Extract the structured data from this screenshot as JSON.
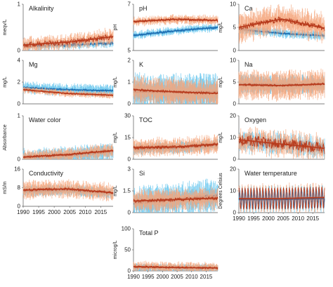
{
  "chart_data": [
    {
      "type": "line",
      "title": "Alkalinity",
      "ylabel": "meqv/L",
      "ylim": [
        0,
        1
      ],
      "yticks": [
        "0",
        "1"
      ],
      "xlim": [
        1990,
        2019
      ],
      "series": [
        {
          "color": "#1f6fb2",
          "shade": "#66c6ee",
          "trend": [
            0.1,
            0.12,
            0.16
          ],
          "noise": 0.04,
          "band": 0.05
        },
        {
          "color": "#b73a1c",
          "shade": "#f5a67c",
          "trend": [
            0.12,
            0.18,
            0.3
          ],
          "noise": 0.06,
          "band": 0.1
        }
      ]
    },
    {
      "type": "line",
      "title": "pH",
      "ylabel": "pH",
      "ylim": [
        5,
        7
      ],
      "yticks": [
        "5",
        "7"
      ],
      "xlim": [
        1990,
        2019
      ],
      "series": [
        {
          "color": "#1f6fb2",
          "shade": "#66c6ee",
          "trend": [
            5.65,
            5.85,
            6.0
          ],
          "noise": 0.06,
          "band": 0.1
        },
        {
          "color": "#b73a1c",
          "shade": "#f5a67c",
          "trend": [
            6.25,
            6.35,
            6.3
          ],
          "noise": 0.06,
          "band": 0.12
        }
      ]
    },
    {
      "type": "line",
      "title": "Ca",
      "ylabel": "mg/L",
      "ylim": [
        0,
        10
      ],
      "yticks": [
        "0",
        "5",
        "10"
      ],
      "xlim": [
        1990,
        2019
      ],
      "series": [
        {
          "color": "#1f6fb2",
          "shade": "#66c6ee",
          "trend": [
            4.6,
            3.7,
            3.2
          ],
          "noise": 0.25,
          "band": 0.6
        },
        {
          "color": "#b73a1c",
          "shade": "#f5a67c",
          "trend": [
            5.0,
            6.8,
            4.8
          ],
          "noise": 0.6,
          "band": 2.0
        }
      ]
    },
    {
      "type": "line",
      "title": "Mg",
      "ylabel": "mg/L",
      "ylim": [
        0,
        4
      ],
      "yticks": [
        "0",
        "2",
        "4"
      ],
      "xlim": [
        1990,
        2019
      ],
      "series": [
        {
          "color": "#1f6fb2",
          "shade": "#66c6ee",
          "trend": [
            1.5,
            1.3,
            1.2
          ],
          "noise": 0.1,
          "band": 0.35
        },
        {
          "color": "#b73a1c",
          "shade": "#f5a67c",
          "trend": [
            1.3,
            0.95,
            0.8
          ],
          "noise": 0.08,
          "band": 0.2
        }
      ]
    },
    {
      "type": "line",
      "title": "K",
      "ylabel": "mg/L",
      "ylim": [
        0,
        2
      ],
      "yticks": [
        "0",
        "1",
        "2"
      ],
      "xlim": [
        1990,
        2019
      ],
      "series": [
        {
          "color": "#1f6fb2",
          "shade": "#66c6ee",
          "trend": [
            0.55,
            0.55,
            0.55
          ],
          "noise": 0.05,
          "band": 0.55
        },
        {
          "color": "#b73a1c",
          "shade": "#f5a67c",
          "trend": [
            0.65,
            0.55,
            0.48
          ],
          "noise": 0.06,
          "band": 0.4
        }
      ]
    },
    {
      "type": "line",
      "title": "Na",
      "ylabel": "mg/L",
      "ylim": [
        0,
        10
      ],
      "yticks": [
        "0",
        "5",
        "10"
      ],
      "xlim": [
        1990,
        2019
      ],
      "series": [
        {
          "color": "#1f6fb2",
          "shade": "#66c6ee",
          "trend": [
            4.6,
            4.4,
            4.5
          ],
          "noise": 0.2,
          "band": 1.4
        },
        {
          "color": "#b73a1c",
          "shade": "#f5a67c",
          "trend": [
            4.4,
            4.2,
            4.6
          ],
          "noise": 0.25,
          "band": 2.2
        }
      ]
    },
    {
      "type": "line",
      "title": "Water color",
      "ylabel": "Absorbance",
      "ylim": [
        0,
        1
      ],
      "yticks": [
        "0",
        "1"
      ],
      "xlim": [
        1990,
        2019
      ],
      "series": [
        {
          "color": "#1f6fb2",
          "shade": "#66c6ee",
          "trend": [
            0.04,
            0.1,
            0.18
          ],
          "noise": 0.03,
          "band": 0.12
        },
        {
          "color": "#b73a1c",
          "shade": "#f5a67c",
          "trend": [
            0.05,
            0.11,
            0.2
          ],
          "noise": 0.03,
          "band": 0.1
        }
      ]
    },
    {
      "type": "line",
      "title": "TOC",
      "ylabel": "mg/L",
      "ylim": [
        0,
        30
      ],
      "yticks": [
        "0",
        "15",
        "30"
      ],
      "xlim": [
        1990,
        2019
      ],
      "series": [
        {
          "color": "#1f6fb2",
          "shade": "#66c6ee",
          "trend": [
            7.0,
            8.0,
            10.0
          ],
          "noise": 1.0,
          "band": 2.5
        },
        {
          "color": "#b73a1c",
          "shade": "#f5a67c",
          "trend": [
            8.0,
            8.5,
            10.5
          ],
          "noise": 1.2,
          "band": 4.0
        }
      ]
    },
    {
      "type": "line",
      "title": "Oxygen",
      "ylabel": "mg/L",
      "ylim": [
        0,
        20
      ],
      "yticks": [
        "0",
        "10",
        "20"
      ],
      "xlim": [
        1990,
        2019
      ],
      "series": [
        {
          "color": "#1f6fb2",
          "shade": "#66c6ee",
          "trend": [
            8.0,
            7.0,
            5.5
          ],
          "noise": 2.2,
          "band": 2.5
        },
        {
          "color": "#b73a1c",
          "shade": "#f5a67c",
          "trend": [
            9.0,
            7.0,
            5.0
          ],
          "noise": 2.6,
          "band": 3.0
        }
      ]
    },
    {
      "type": "line",
      "title": "Conductivity",
      "ylabel": "mS/m",
      "ylim": [
        0,
        16
      ],
      "yticks": [
        "0",
        "8",
        "16"
      ],
      "xlim": [
        1990,
        2019
      ],
      "series": [
        {
          "color": "#1f6fb2",
          "shade": "#66c6ee",
          "trend": [
            6.5,
            7.0,
            5.5
          ],
          "noise": 0.4,
          "band": 1.5
        },
        {
          "color": "#b73a1c",
          "shade": "#f5a67c",
          "trend": [
            7.0,
            7.5,
            5.8
          ],
          "noise": 0.6,
          "band": 2.5
        }
      ]
    },
    {
      "type": "line",
      "title": "Si",
      "ylabel": "mg/L",
      "ylim": [
        0,
        3
      ],
      "yticks": [
        "0",
        "1.5",
        "3"
      ],
      "xlim": [
        1990,
        2019
      ],
      "series": [
        {
          "color": "#1f6fb2",
          "shade": "#66c6ee",
          "trend": [
            0.7,
            0.9,
            1.2
          ],
          "noise": 0.15,
          "band": 0.7
        },
        {
          "color": "#b73a1c",
          "shade": "#f5a67c",
          "trend": [
            0.8,
            0.9,
            1.0
          ],
          "noise": 0.12,
          "band": 0.5
        }
      ]
    },
    {
      "type": "line",
      "title": "Water temperature",
      "ylabel": "Degrees Celsius",
      "ylim": [
        0,
        20
      ],
      "yticks": [
        "0",
        "10",
        "20"
      ],
      "xlim": [
        1990,
        2019
      ],
      "seasonal": true,
      "series": [
        {
          "color": "#1f6fb2",
          "shade": "#66c6ee",
          "trend": [
            6.0,
            6.0,
            6.5
          ],
          "noise": 4.5,
          "band": 1.5
        },
        {
          "color": "#b73a1c",
          "shade": "#f5a67c",
          "trend": [
            6.5,
            6.5,
            7.0
          ],
          "noise": 5.0,
          "band": 1.5
        }
      ]
    },
    {
      "type": "line",
      "title": "Total P",
      "ylabel": "microg/L",
      "ylim": [
        0,
        100
      ],
      "yticks": [
        "0",
        "50",
        "100"
      ],
      "xlim": [
        1990,
        2019
      ],
      "series": [
        {
          "color": "#1f6fb2",
          "shade": "#66c6ee",
          "trend": [
            8.0,
            7.0,
            6.0
          ],
          "noise": 2.0,
          "band": 6.0
        },
        {
          "color": "#b73a1c",
          "shade": "#f5a67c",
          "trend": [
            10.0,
            8.0,
            7.0
          ],
          "noise": 2.5,
          "band": 8.0
        }
      ]
    }
  ],
  "x_tick_labels": [
    "1990",
    "1995",
    "2000",
    "2005",
    "2010",
    "2015"
  ]
}
